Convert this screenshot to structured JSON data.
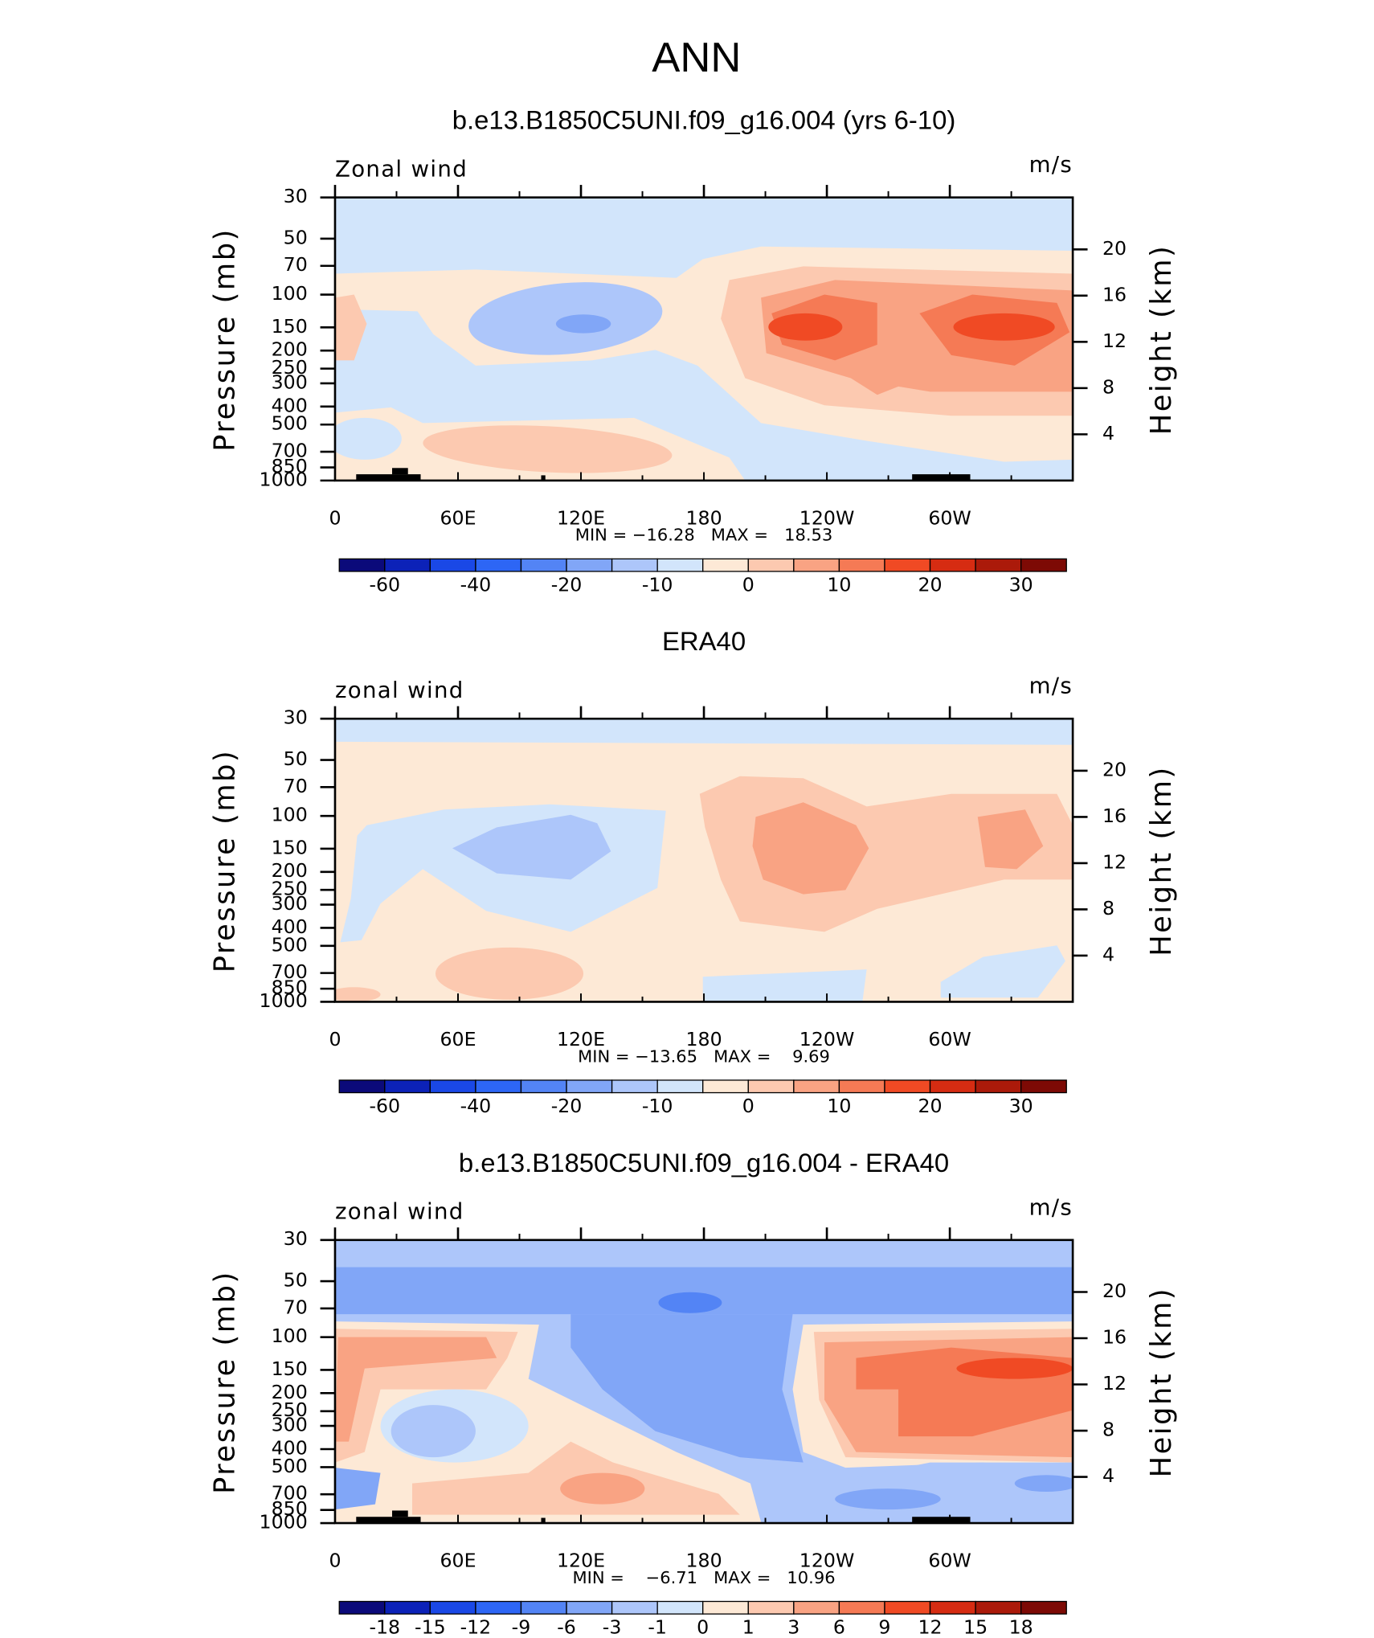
{
  "title": "ANN",
  "chart_data": [
    {
      "type": "contour",
      "title": "b.e13.B1850C5UNI.f09_g16.004 (yrs 6-10)",
      "annotation": "Zonal wind",
      "units": "m/s",
      "stats": "MIN = −16.28   MAX =   18.53",
      "ylabel": "Pressure (mb)",
      "y2label": "Height (km)",
      "xlim": [
        0,
        360
      ],
      "xticks": [
        0,
        {
          "value": 60,
          "label": "60E"
        },
        {
          "value": 120,
          "label": "120E"
        },
        180,
        {
          "value": 240,
          "label": "120W"
        },
        {
          "value": 300,
          "label": "60W"
        }
      ],
      "xminor": [
        30,
        90,
        150,
        210,
        270,
        330
      ],
      "ylim": [
        1000,
        30
      ],
      "log_y": true,
      "yticks": [
        30,
        50,
        70,
        100,
        150,
        200,
        250,
        300,
        400,
        500,
        700,
        850,
        1000
      ],
      "y2lim": [
        0,
        24.5
      ],
      "y2ticks": [
        4,
        8,
        12,
        16,
        20
      ],
      "colorbar": {
        "colors": [
          "#0b0a7a",
          "#0c22b8",
          "#1a48e6",
          "#2d66f5",
          "#5384f5",
          "#81a6f7",
          "#adc6fa",
          "#d2e5fb",
          "#fde9d6",
          "#fcc9b0",
          "#f9a383",
          "#f57a55",
          "#f04a24",
          "#d62c12",
          "#ab1a0a",
          "#7d0a05"
        ],
        "labels": [
          -60,
          -40,
          -20,
          -10,
          0,
          10,
          20,
          30
        ]
      }
    },
    {
      "type": "contour",
      "title": "ERA40",
      "annotation": "zonal wind",
      "units": "m/s",
      "stats": "MIN = −13.65   MAX =    9.69",
      "ylabel": "Pressure (mb)",
      "y2label": "Height (km)",
      "xlim": [
        0,
        360
      ],
      "xticks": [
        0,
        {
          "value": 60,
          "label": "60E"
        },
        {
          "value": 120,
          "label": "120E"
        },
        180,
        {
          "value": 240,
          "label": "120W"
        },
        {
          "value": 300,
          "label": "60W"
        }
      ],
      "xminor": [
        30,
        90,
        150,
        210,
        270,
        330
      ],
      "ylim": [
        1000,
        30
      ],
      "log_y": true,
      "yticks": [
        30,
        50,
        70,
        100,
        150,
        200,
        250,
        300,
        400,
        500,
        700,
        850,
        1000
      ],
      "y2lim": [
        0,
        24.5
      ],
      "y2ticks": [
        4,
        8,
        12,
        16,
        20
      ],
      "colorbar": {
        "colors": [
          "#0b0a7a",
          "#0c22b8",
          "#1a48e6",
          "#2d66f5",
          "#5384f5",
          "#81a6f7",
          "#adc6fa",
          "#d2e5fb",
          "#fde9d6",
          "#fcc9b0",
          "#f9a383",
          "#f57a55",
          "#f04a24",
          "#d62c12",
          "#ab1a0a",
          "#7d0a05"
        ],
        "labels": [
          -60,
          -40,
          -20,
          -10,
          0,
          10,
          20,
          30
        ]
      }
    },
    {
      "type": "contour",
      "title": "b.e13.B1850C5UNI.f09_g16.004 - ERA40",
      "annotation": "zonal wind",
      "units": "m/s",
      "stats": "MIN =    −6.71   MAX =   10.96",
      "ylabel": "Pressure (mb)",
      "y2label": "Height (km)",
      "xlim": [
        0,
        360
      ],
      "xticks": [
        0,
        {
          "value": 60,
          "label": "60E"
        },
        {
          "value": 120,
          "label": "120E"
        },
        180,
        {
          "value": 240,
          "label": "120W"
        },
        {
          "value": 300,
          "label": "60W"
        }
      ],
      "xminor": [
        30,
        90,
        150,
        210,
        270,
        330
      ],
      "ylim": [
        1000,
        30
      ],
      "log_y": true,
      "yticks": [
        30,
        50,
        70,
        100,
        150,
        200,
        250,
        300,
        400,
        500,
        700,
        850,
        1000
      ],
      "y2lim": [
        0,
        24.5
      ],
      "y2ticks": [
        4,
        8,
        12,
        16,
        20
      ],
      "colorbar": {
        "colors": [
          "#0b0a7a",
          "#0c22b8",
          "#1a48e6",
          "#2d66f5",
          "#5384f5",
          "#81a6f7",
          "#adc6fa",
          "#d2e5fb",
          "#fde9d6",
          "#fcc9b0",
          "#f9a383",
          "#f57a55",
          "#f04a24",
          "#d62c12",
          "#ab1a0a",
          "#7d0a05"
        ],
        "labels": [
          -18,
          -15,
          -12,
          -9,
          -6,
          -3,
          -1,
          0,
          1,
          3,
          6,
          9,
          12,
          15,
          18
        ]
      }
    }
  ]
}
